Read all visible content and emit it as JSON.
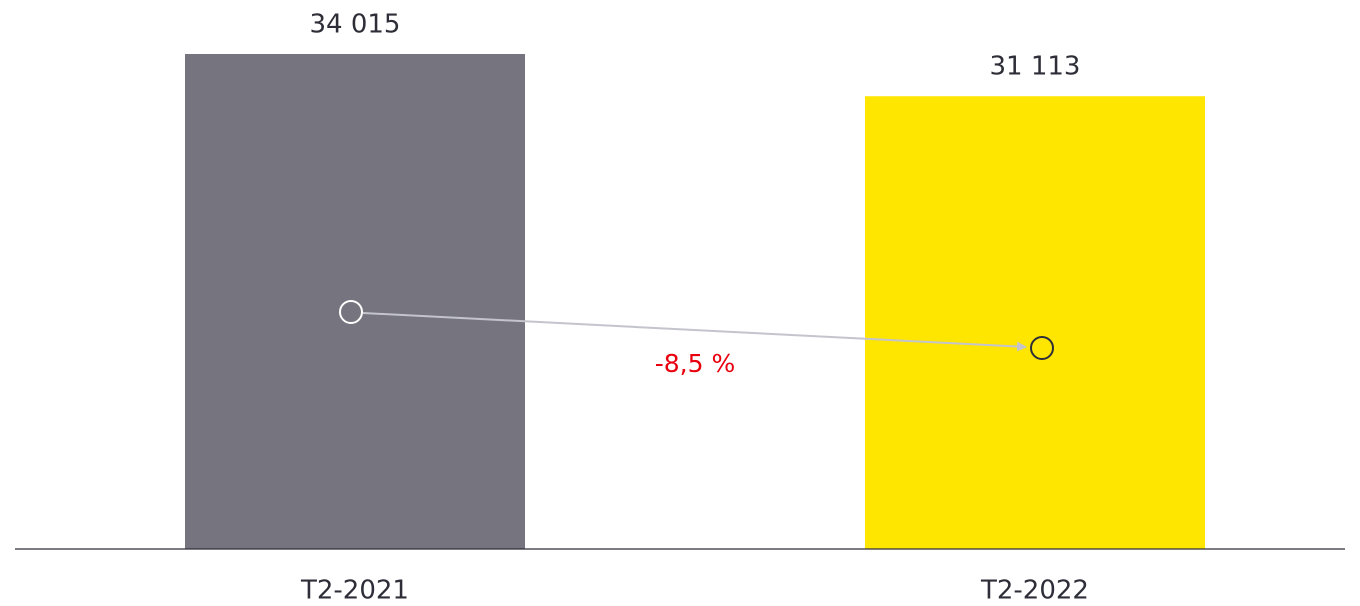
{
  "chart_data": {
    "type": "bar",
    "categories": [
      "T2-2021",
      "T2-2022"
    ],
    "values": [
      34015,
      31113
    ],
    "value_labels": [
      "34 015",
      "31 113"
    ],
    "colors": [
      "#75747f",
      "#ffe600"
    ],
    "annotation": "-8,5 %"
  }
}
